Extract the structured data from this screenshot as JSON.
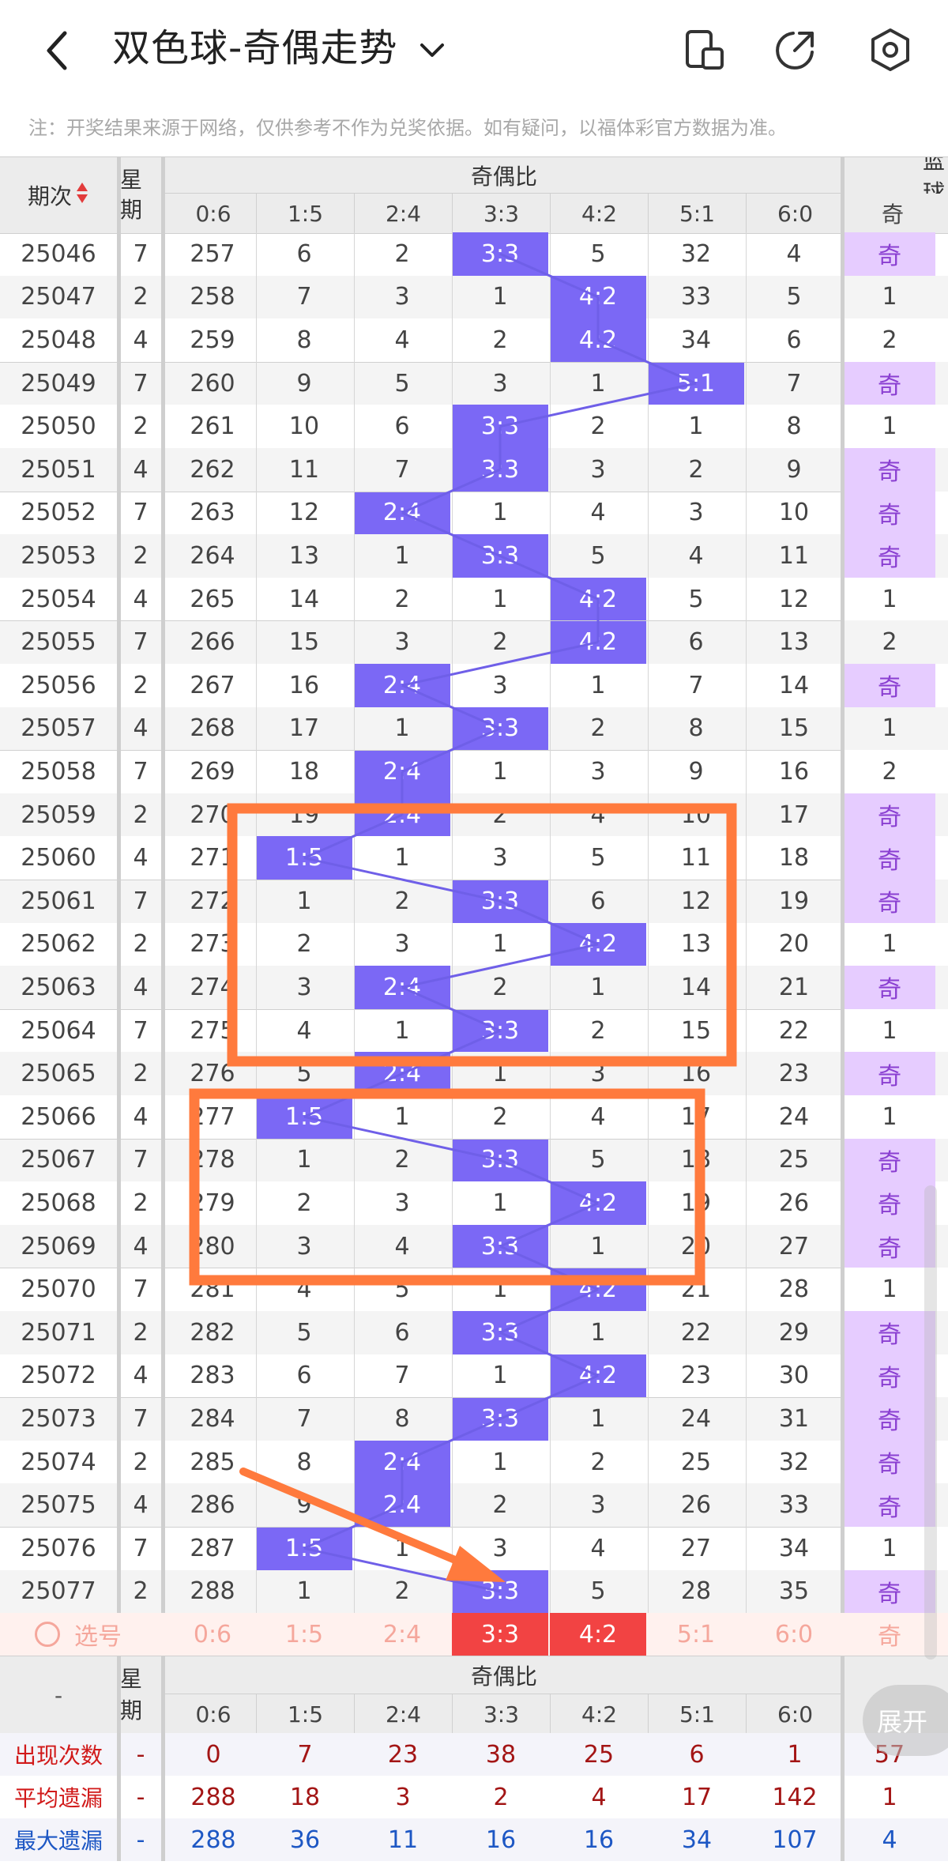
{
  "header": {
    "title": "双色球-奇偶走势",
    "notice": "注：开奖结果来源于网络，仅供参考不作为兑奖依据。如有疑问，以福体彩官方数据为准。"
  },
  "table": {
    "col_issue": "期次",
    "col_week": "星期",
    "group_label": "奇偶比",
    "blue_group_label": "蓝球",
    "blue_col": "奇",
    "ratios": [
      "0:6",
      "1:5",
      "2:4",
      "3:3",
      "4:2",
      "5:1",
      "6:0"
    ],
    "rows": [
      {
        "issue": "25046",
        "week": "7",
        "vals": [
          "257",
          "6",
          "2",
          "3:3",
          "5",
          "32",
          "4"
        ],
        "hl": 3,
        "blue": "奇"
      },
      {
        "issue": "25047",
        "week": "2",
        "vals": [
          "258",
          "7",
          "3",
          "1",
          "4:2",
          "33",
          "5"
        ],
        "hl": 4,
        "blue": "1"
      },
      {
        "issue": "25048",
        "week": "4",
        "vals": [
          "259",
          "8",
          "4",
          "2",
          "4:2",
          "34",
          "6"
        ],
        "hl": 4,
        "blue": "2"
      },
      {
        "issue": "25049",
        "week": "7",
        "vals": [
          "260",
          "9",
          "5",
          "3",
          "1",
          "5:1",
          "7"
        ],
        "hl": 5,
        "blue": "奇"
      },
      {
        "issue": "25050",
        "week": "2",
        "vals": [
          "261",
          "10",
          "6",
          "3:3",
          "2",
          "1",
          "8"
        ],
        "hl": 3,
        "blue": "1"
      },
      {
        "issue": "25051",
        "week": "4",
        "vals": [
          "262",
          "11",
          "7",
          "3:3",
          "3",
          "2",
          "9"
        ],
        "hl": 3,
        "blue": "奇"
      },
      {
        "issue": "25052",
        "week": "7",
        "vals": [
          "263",
          "12",
          "2:4",
          "1",
          "4",
          "3",
          "10"
        ],
        "hl": 2,
        "blue": "奇"
      },
      {
        "issue": "25053",
        "week": "2",
        "vals": [
          "264",
          "13",
          "1",
          "3:3",
          "5",
          "4",
          "11"
        ],
        "hl": 3,
        "blue": "奇"
      },
      {
        "issue": "25054",
        "week": "4",
        "vals": [
          "265",
          "14",
          "2",
          "1",
          "4:2",
          "5",
          "12"
        ],
        "hl": 4,
        "blue": "1"
      },
      {
        "issue": "25055",
        "week": "7",
        "vals": [
          "266",
          "15",
          "3",
          "2",
          "4:2",
          "6",
          "13"
        ],
        "hl": 4,
        "blue": "2"
      },
      {
        "issue": "25056",
        "week": "2",
        "vals": [
          "267",
          "16",
          "2:4",
          "3",
          "1",
          "7",
          "14"
        ],
        "hl": 2,
        "blue": "奇"
      },
      {
        "issue": "25057",
        "week": "4",
        "vals": [
          "268",
          "17",
          "1",
          "3:3",
          "2",
          "8",
          "15"
        ],
        "hl": 3,
        "blue": "1"
      },
      {
        "issue": "25058",
        "week": "7",
        "vals": [
          "269",
          "18",
          "2:4",
          "1",
          "3",
          "9",
          "16"
        ],
        "hl": 2,
        "blue": "2"
      },
      {
        "issue": "25059",
        "week": "2",
        "vals": [
          "270",
          "19",
          "2:4",
          "2",
          "4",
          "10",
          "17"
        ],
        "hl": 2,
        "blue": "奇"
      },
      {
        "issue": "25060",
        "week": "4",
        "vals": [
          "271",
          "1:5",
          "1",
          "3",
          "5",
          "11",
          "18"
        ],
        "hl": 1,
        "blue": "奇"
      },
      {
        "issue": "25061",
        "week": "7",
        "vals": [
          "272",
          "1",
          "2",
          "3:3",
          "6",
          "12",
          "19"
        ],
        "hl": 3,
        "blue": "奇"
      },
      {
        "issue": "25062",
        "week": "2",
        "vals": [
          "273",
          "2",
          "3",
          "1",
          "4:2",
          "13",
          "20"
        ],
        "hl": 4,
        "blue": "1"
      },
      {
        "issue": "25063",
        "week": "4",
        "vals": [
          "274",
          "3",
          "2:4",
          "2",
          "1",
          "14",
          "21"
        ],
        "hl": 2,
        "blue": "奇"
      },
      {
        "issue": "25064",
        "week": "7",
        "vals": [
          "275",
          "4",
          "1",
          "3:3",
          "2",
          "15",
          "22"
        ],
        "hl": 3,
        "blue": "1"
      },
      {
        "issue": "25065",
        "week": "2",
        "vals": [
          "276",
          "5",
          "2:4",
          "1",
          "3",
          "16",
          "23"
        ],
        "hl": 2,
        "blue": "奇"
      },
      {
        "issue": "25066",
        "week": "4",
        "vals": [
          "277",
          "1:5",
          "1",
          "2",
          "4",
          "17",
          "24"
        ],
        "hl": 1,
        "blue": "1"
      },
      {
        "issue": "25067",
        "week": "7",
        "vals": [
          "278",
          "1",
          "2",
          "3:3",
          "5",
          "18",
          "25"
        ],
        "hl": 3,
        "blue": "奇"
      },
      {
        "issue": "25068",
        "week": "2",
        "vals": [
          "279",
          "2",
          "3",
          "1",
          "4:2",
          "19",
          "26"
        ],
        "hl": 4,
        "blue": "奇"
      },
      {
        "issue": "25069",
        "week": "4",
        "vals": [
          "280",
          "3",
          "4",
          "3:3",
          "1",
          "20",
          "27"
        ],
        "hl": 3,
        "blue": "奇"
      },
      {
        "issue": "25070",
        "week": "7",
        "vals": [
          "281",
          "4",
          "5",
          "1",
          "4:2",
          "21",
          "28"
        ],
        "hl": 4,
        "blue": "1"
      },
      {
        "issue": "25071",
        "week": "2",
        "vals": [
          "282",
          "5",
          "6",
          "3:3",
          "1",
          "22",
          "29"
        ],
        "hl": 3,
        "blue": "奇"
      },
      {
        "issue": "25072",
        "week": "4",
        "vals": [
          "283",
          "6",
          "7",
          "1",
          "4:2",
          "23",
          "30"
        ],
        "hl": 4,
        "blue": "奇"
      },
      {
        "issue": "25073",
        "week": "7",
        "vals": [
          "284",
          "7",
          "8",
          "3:3",
          "1",
          "24",
          "31"
        ],
        "hl": 3,
        "blue": "奇"
      },
      {
        "issue": "25074",
        "week": "2",
        "vals": [
          "285",
          "8",
          "2:4",
          "1",
          "2",
          "25",
          "32"
        ],
        "hl": 2,
        "blue": "奇"
      },
      {
        "issue": "25075",
        "week": "4",
        "vals": [
          "286",
          "9",
          "2:4",
          "2",
          "3",
          "26",
          "33"
        ],
        "hl": 2,
        "blue": "奇"
      },
      {
        "issue": "25076",
        "week": "7",
        "vals": [
          "287",
          "1:5",
          "1",
          "3",
          "4",
          "27",
          "34"
        ],
        "hl": 1,
        "blue": "1"
      },
      {
        "issue": "25077",
        "week": "2",
        "vals": [
          "288",
          "1",
          "2",
          "3:3",
          "5",
          "28",
          "35"
        ],
        "hl": 3,
        "blue": "奇"
      }
    ],
    "pick_label": "选号",
    "pick_blue": "奇",
    "pick_selected": [
      "3:3",
      "4:2"
    ],
    "bottom_issue": "-",
    "stats": [
      {
        "label": "出现次数",
        "week": "-",
        "vals": [
          "0",
          "7",
          "23",
          "38",
          "25",
          "6",
          "1"
        ],
        "blue": "57",
        "color": "#a31515"
      },
      {
        "label": "平均遗漏",
        "week": "-",
        "vals": [
          "288",
          "18",
          "3",
          "2",
          "4",
          "17",
          "142"
        ],
        "blue": "1",
        "color": "#a31515"
      },
      {
        "label": "最大遗漏",
        "week": "-",
        "vals": [
          "288",
          "36",
          "11",
          "16",
          "16",
          "34",
          "107"
        ],
        "blue": "4",
        "color": "#1d57c4"
      }
    ]
  },
  "expand_label": "展开",
  "colors": {
    "accent": "#7b68f5",
    "blue_odd_bg": "#e6ccff",
    "annotation": "#ff7a3d",
    "pick_red": "#f24343"
  }
}
